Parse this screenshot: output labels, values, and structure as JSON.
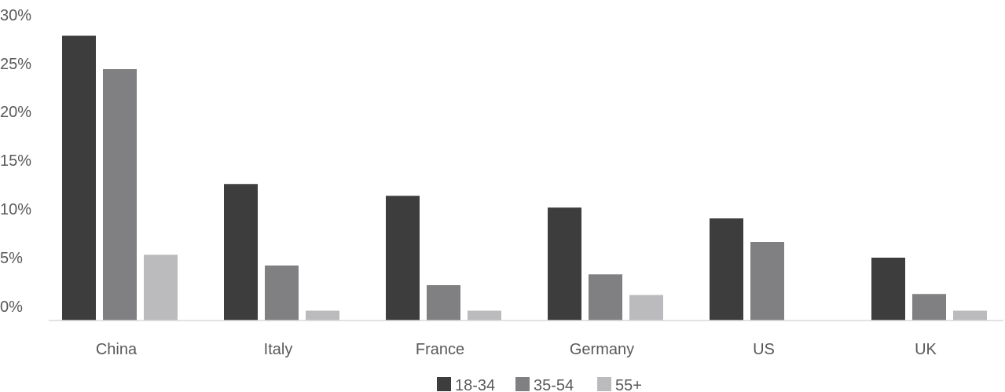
{
  "chart_data": {
    "type": "bar",
    "categories": [
      "China",
      "Italy",
      "France",
      "Germany",
      "US",
      "UK"
    ],
    "series": [
      {
        "name": "18-34",
        "values": [
          29.0,
          13.9,
          12.7,
          11.5,
          10.4,
          6.4
        ],
        "color": "#3d3d3d"
      },
      {
        "name": "35-54",
        "values": [
          25.6,
          5.6,
          3.6,
          4.7,
          8.0,
          2.7
        ],
        "color": "#808083"
      },
      {
        "name": "55+",
        "values": [
          6.7,
          1.0,
          1.0,
          2.6,
          0.0,
          1.0
        ],
        "color": "#bbbbbe"
      }
    ],
    "yticks": [
      "0%",
      "5%",
      "10%",
      "15%",
      "20%",
      "25%",
      "30%"
    ],
    "ylim": [
      0,
      30
    ],
    "grid": false,
    "legend": "bottom-center"
  }
}
